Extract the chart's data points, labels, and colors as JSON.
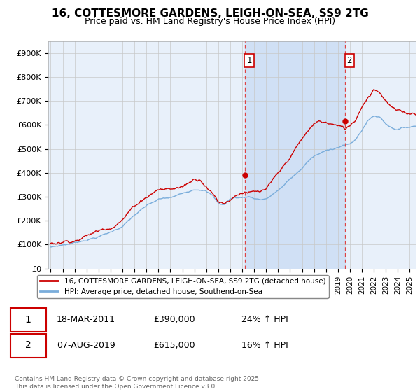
{
  "title": "16, COTTESMORE GARDENS, LEIGH-ON-SEA, SS9 2TG",
  "subtitle": "Price paid vs. HM Land Registry's House Price Index (HPI)",
  "ylabel_ticks": [
    "£0",
    "£100K",
    "£200K",
    "£300K",
    "£400K",
    "£500K",
    "£600K",
    "£700K",
    "£800K",
    "£900K"
  ],
  "ytick_values": [
    0,
    100000,
    200000,
    300000,
    400000,
    500000,
    600000,
    700000,
    800000,
    900000
  ],
  "ylim": [
    0,
    950000
  ],
  "xlim_start": 1994.8,
  "xlim_end": 2025.5,
  "sale1_date": 2011.21,
  "sale1_price": 390000,
  "sale2_date": 2019.59,
  "sale2_price": 615000,
  "legend_label_red": "16, COTTESMORE GARDENS, LEIGH-ON-SEA, SS9 2TG (detached house)",
  "legend_label_blue": "HPI: Average price, detached house, Southend-on-Sea",
  "footer": "Contains HM Land Registry data © Crown copyright and database right 2025.\nThis data is licensed under the Open Government Licence v3.0.",
  "red_color": "#cc0000",
  "blue_color": "#7aaddb",
  "bg_color": "#e8f0fa",
  "vline_color": "#dd4444",
  "grid_color": "#c8c8c8",
  "span_color": "#d0e0f5"
}
